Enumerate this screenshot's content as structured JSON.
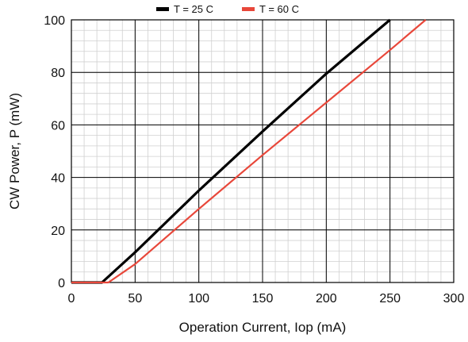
{
  "chart_data": {
    "type": "line",
    "title": "",
    "xlabel": "Operation Current, Iop (mA)",
    "ylabel": "CW Power, P (mW)",
    "xlim": [
      0,
      300
    ],
    "ylim": [
      0,
      100
    ],
    "x_ticks": [
      0,
      50,
      100,
      150,
      200,
      250,
      300
    ],
    "y_ticks": [
      0,
      20,
      40,
      60,
      80,
      100
    ],
    "x_tick_labels": [
      "0",
      "50",
      "100",
      "150",
      "200",
      "250",
      "300"
    ],
    "y_tick_labels": [
      "0",
      "20",
      "40",
      "60",
      "80",
      "100"
    ],
    "grid": true,
    "minor_grid": true,
    "legend_position": "top-center",
    "series": [
      {
        "name": "T = 25 C",
        "color": "#000000",
        "x": [
          0,
          24,
          50,
          100,
          150,
          200,
          250
        ],
        "y": [
          0,
          0,
          11.5,
          35,
          57.5,
          79.5,
          100
        ]
      },
      {
        "name": "T = 60 C",
        "color": "#e8473a",
        "x": [
          0,
          29,
          50,
          100,
          150,
          200,
          250,
          278
        ],
        "y": [
          0,
          0,
          7,
          28,
          48.5,
          68.5,
          88.5,
          100
        ]
      }
    ]
  }
}
